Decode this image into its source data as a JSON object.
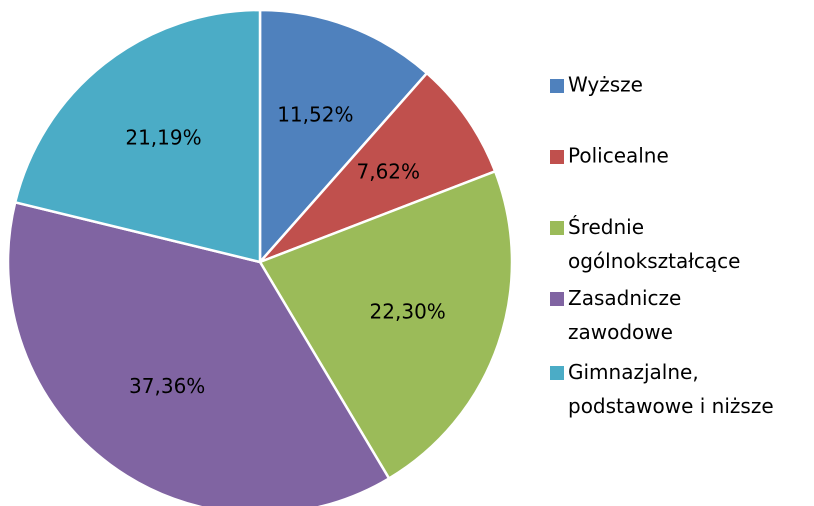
{
  "chart_data": {
    "type": "pie",
    "categories": [
      "Wyższe",
      "Policealne",
      "Średnie ogólnokształcące",
      "Zasadnicze zawodowe",
      "Gimnazjalne, podstawowe i niższe"
    ],
    "values": [
      11.52,
      7.62,
      22.3,
      37.36,
      21.19
    ],
    "value_labels": [
      "11,52%",
      "7,62%",
      "22,30%",
      "37,36%",
      "21,19%"
    ],
    "colors": [
      "#4f81bd",
      "#c0504d",
      "#9bbb59",
      "#8064a2",
      "#4bacc6"
    ],
    "legend": "right"
  }
}
